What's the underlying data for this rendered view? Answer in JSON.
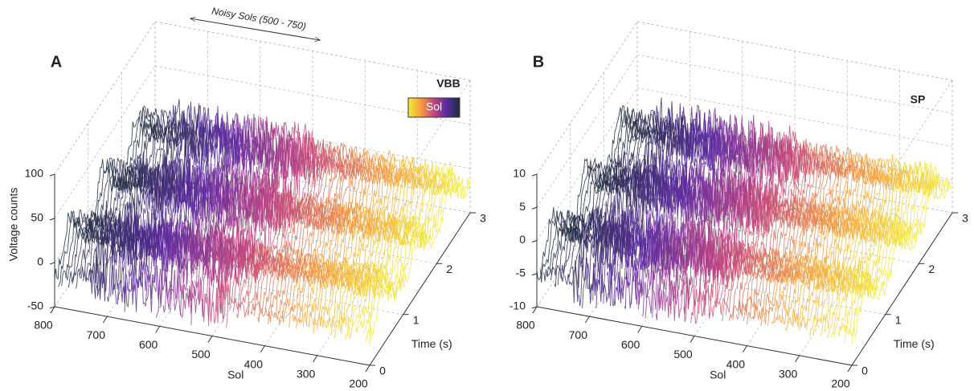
{
  "chart_data": [
    {
      "type": "waterfall3d",
      "panel_label": "A",
      "title": "VBB",
      "annotation": "Noisy Sols (500 - 750)",
      "colorbar_label": "Sol",
      "colormap": [
        "#f2ec3a",
        "#f59a3c",
        "#c2457e",
        "#5a2aa0",
        "#1d2c3c"
      ],
      "xlabel": "Sol",
      "ylabel": "Time (s)",
      "zlabel": "Voltage counts",
      "xlim": [
        800,
        200
      ],
      "xticks": [
        800,
        700,
        600,
        500,
        400,
        300,
        200
      ],
      "ylim": [
        0,
        3
      ],
      "yticks": [
        0,
        1,
        2,
        3
      ],
      "zlim": [
        -50,
        100
      ],
      "zticks": [
        -50,
        0,
        50,
        100
      ],
      "grid": true
    },
    {
      "type": "waterfall3d",
      "panel_label": "B",
      "title": "SP",
      "colormap": [
        "#f2ec3a",
        "#f59a3c",
        "#c2457e",
        "#5a2aa0",
        "#1d2c3c"
      ],
      "xlabel": "Sol",
      "ylabel": "Time (s)",
      "xlim": [
        800,
        200
      ],
      "xticks": [
        800,
        700,
        600,
        500,
        400,
        300,
        200
      ],
      "ylim": [
        0,
        3
      ],
      "yticks": [
        0,
        1,
        2,
        3
      ],
      "zlim": [
        -10,
        10
      ],
      "zticks": [
        -10,
        -5,
        0,
        5,
        10
      ],
      "grid": true
    }
  ]
}
